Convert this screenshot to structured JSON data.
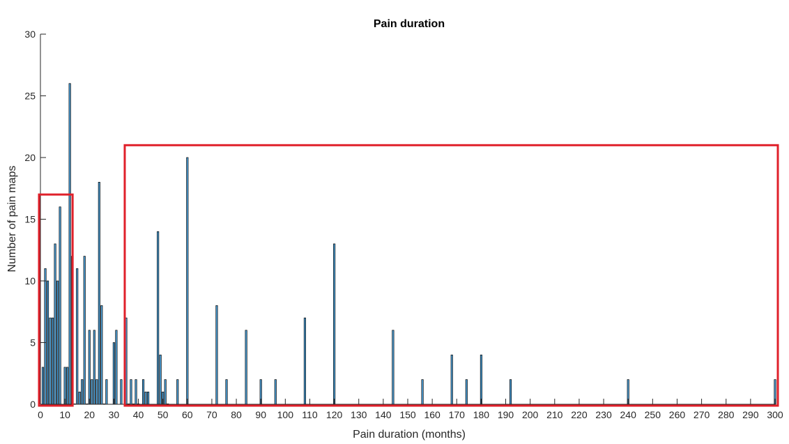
{
  "chart_data": {
    "type": "bar",
    "title": "Pain duration",
    "xlabel": "Pain duration (months)",
    "ylabel": "Number of pain maps",
    "xlim": [
      0,
      300
    ],
    "ylim": [
      0,
      30
    ],
    "x_ticks": [
      0,
      10,
      20,
      30,
      40,
      50,
      60,
      70,
      80,
      90,
      100,
      110,
      120,
      130,
      140,
      150,
      160,
      170,
      180,
      190,
      200,
      210,
      220,
      230,
      240,
      250,
      260,
      270,
      280,
      290,
      300
    ],
    "y_ticks": [
      0,
      5,
      10,
      15,
      20,
      25,
      30
    ],
    "grid": false,
    "bar_color": "#4d9fd6",
    "bar_edge_color": "#000000",
    "highlight_color": "#e0202a",
    "highlights": [
      {
        "x_range": [
          0,
          12
        ],
        "y_range": [
          0,
          17
        ]
      },
      {
        "x_range": [
          35,
          300
        ],
        "y_range": [
          0,
          21
        ]
      }
    ],
    "x": [
      1,
      2,
      3,
      4,
      5,
      6,
      7,
      8,
      10,
      11,
      12,
      13,
      14,
      15,
      16,
      17,
      18,
      19,
      20,
      21,
      22,
      23,
      24,
      25,
      26,
      27,
      30,
      31,
      33,
      35,
      36,
      37,
      38,
      39,
      40,
      42,
      43,
      44,
      48,
      49,
      50,
      51,
      52,
      56,
      60,
      72,
      76,
      84,
      90,
      96,
      108,
      120,
      144,
      156,
      168,
      174,
      180,
      192,
      240,
      300
    ],
    "values": [
      3,
      11,
      10,
      7,
      7,
      13,
      10,
      16,
      3,
      3,
      26,
      12,
      0,
      11,
      1,
      2,
      12,
      0,
      6,
      2,
      6,
      2,
      18,
      8,
      0,
      2,
      5,
      6,
      2,
      7,
      0,
      2,
      0,
      2,
      0,
      2,
      1,
      1,
      14,
      4,
      1,
      2,
      0,
      2,
      20,
      8,
      2,
      6,
      2,
      2,
      7,
      13,
      6,
      2,
      4,
      2,
      4,
      2,
      2,
      2
    ]
  }
}
